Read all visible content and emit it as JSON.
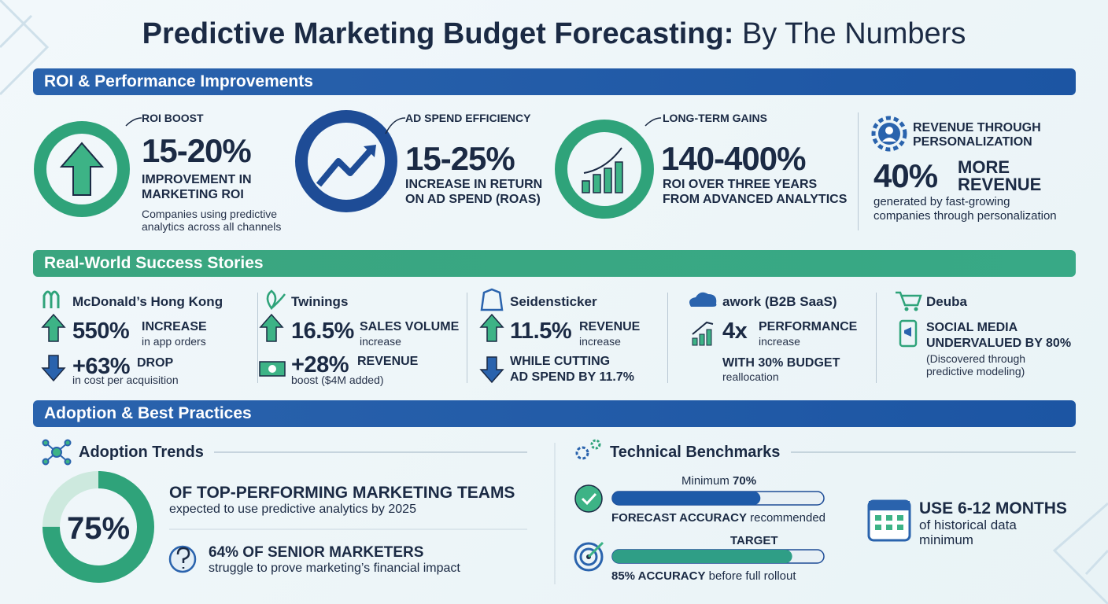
{
  "header": {
    "title_strong": "Predictive Marketing Budget Forecasting:",
    "title_light": "By The Numbers"
  },
  "roi": {
    "heading": "ROI & Performance Improvements",
    "cards": [
      {
        "label": "ROI BOOST",
        "stat": "15-20%",
        "desc": [
          "IMPROVEMENT IN",
          "MARKETING ROI"
        ],
        "note": [
          "Companies using predictive",
          "analytics across all channels"
        ]
      },
      {
        "label": "AD SPEND EFFICIENCY",
        "stat": "15-25%",
        "desc": [
          "INCREASE IN RETURN",
          "ON AD SPEND (ROAS)"
        ]
      },
      {
        "label": "LONG-TERM GAINS",
        "stat": "140-400%",
        "desc": [
          "ROI OVER THREE YEARS",
          "FROM ADVANCED ANALYTICS"
        ]
      }
    ],
    "personalization": {
      "label": [
        "REVENUE THROUGH",
        "PERSONALIZATION"
      ],
      "stat": "40%",
      "stat_text": [
        "MORE",
        "REVENUE"
      ],
      "note": [
        "generated by fast-growing",
        "companies through personalization"
      ]
    }
  },
  "success": {
    "heading": "Real-World Success Stories",
    "stories": [
      {
        "company": "McDonald’s Hong Kong",
        "items": [
          {
            "stat": "550%",
            "label": "INCREASE",
            "sub": "in app orders"
          },
          {
            "stat": "+63%",
            "label": "DROP",
            "sub": "in cost per acquisition"
          }
        ]
      },
      {
        "company": "Twinings",
        "items": [
          {
            "stat": "16.5%",
            "label": "SALES VOLUME",
            "sub": "increase"
          },
          {
            "stat": "+28%",
            "label": "REVENUE",
            "sub": "boost ($4M added)"
          }
        ]
      },
      {
        "company": "Seidensticker",
        "items": [
          {
            "stat": "11.5%",
            "label": "REVENUE",
            "sub": "increase"
          }
        ],
        "note": [
          "WHILE CUTTING",
          "AD SPEND BY 11.7%"
        ]
      },
      {
        "company": "awork (B2B SaaS)",
        "items": [
          {
            "stat": "4x",
            "label": "PERFORMANCE",
            "sub": "increase"
          }
        ],
        "note": [
          "WITH 30% BUDGET"
        ],
        "note_sub": [
          "reallocation"
        ]
      },
      {
        "company": "Deuba",
        "note": [
          "SOCIAL MEDIA",
          "UNDERVALUED BY 80%"
        ],
        "note_sub": [
          "(Discovered through",
          "predictive modeling)"
        ]
      }
    ]
  },
  "adoption": {
    "heading": "Adoption & Best Practices",
    "trends": {
      "title": "Adoption Trends",
      "ring": {
        "value": 75,
        "label": "75%"
      },
      "stat": "OF TOP-PERFORMING MARKETING TEAMS",
      "stat_sub": "expected to use predictive analytics by 2025",
      "question": "64% OF SENIOR MARKETERS",
      "question_sub": "struggle to prove marketing’s financial impact"
    },
    "benchmarks": {
      "title": "Technical Benchmarks",
      "bars": [
        {
          "caption_top": "Minimum",
          "value": 70,
          "label": "70%",
          "caption_strong": "FORECAST ACCURACY",
          "caption": "recommended"
        },
        {
          "caption_top": "TARGET",
          "value": 85,
          "label": "85% ACCURACY",
          "caption": "before full rollout"
        }
      ],
      "history": {
        "strong": "USE 6-12 MONTHS",
        "sub": [
          "of historical data",
          "minimum"
        ]
      }
    }
  }
}
